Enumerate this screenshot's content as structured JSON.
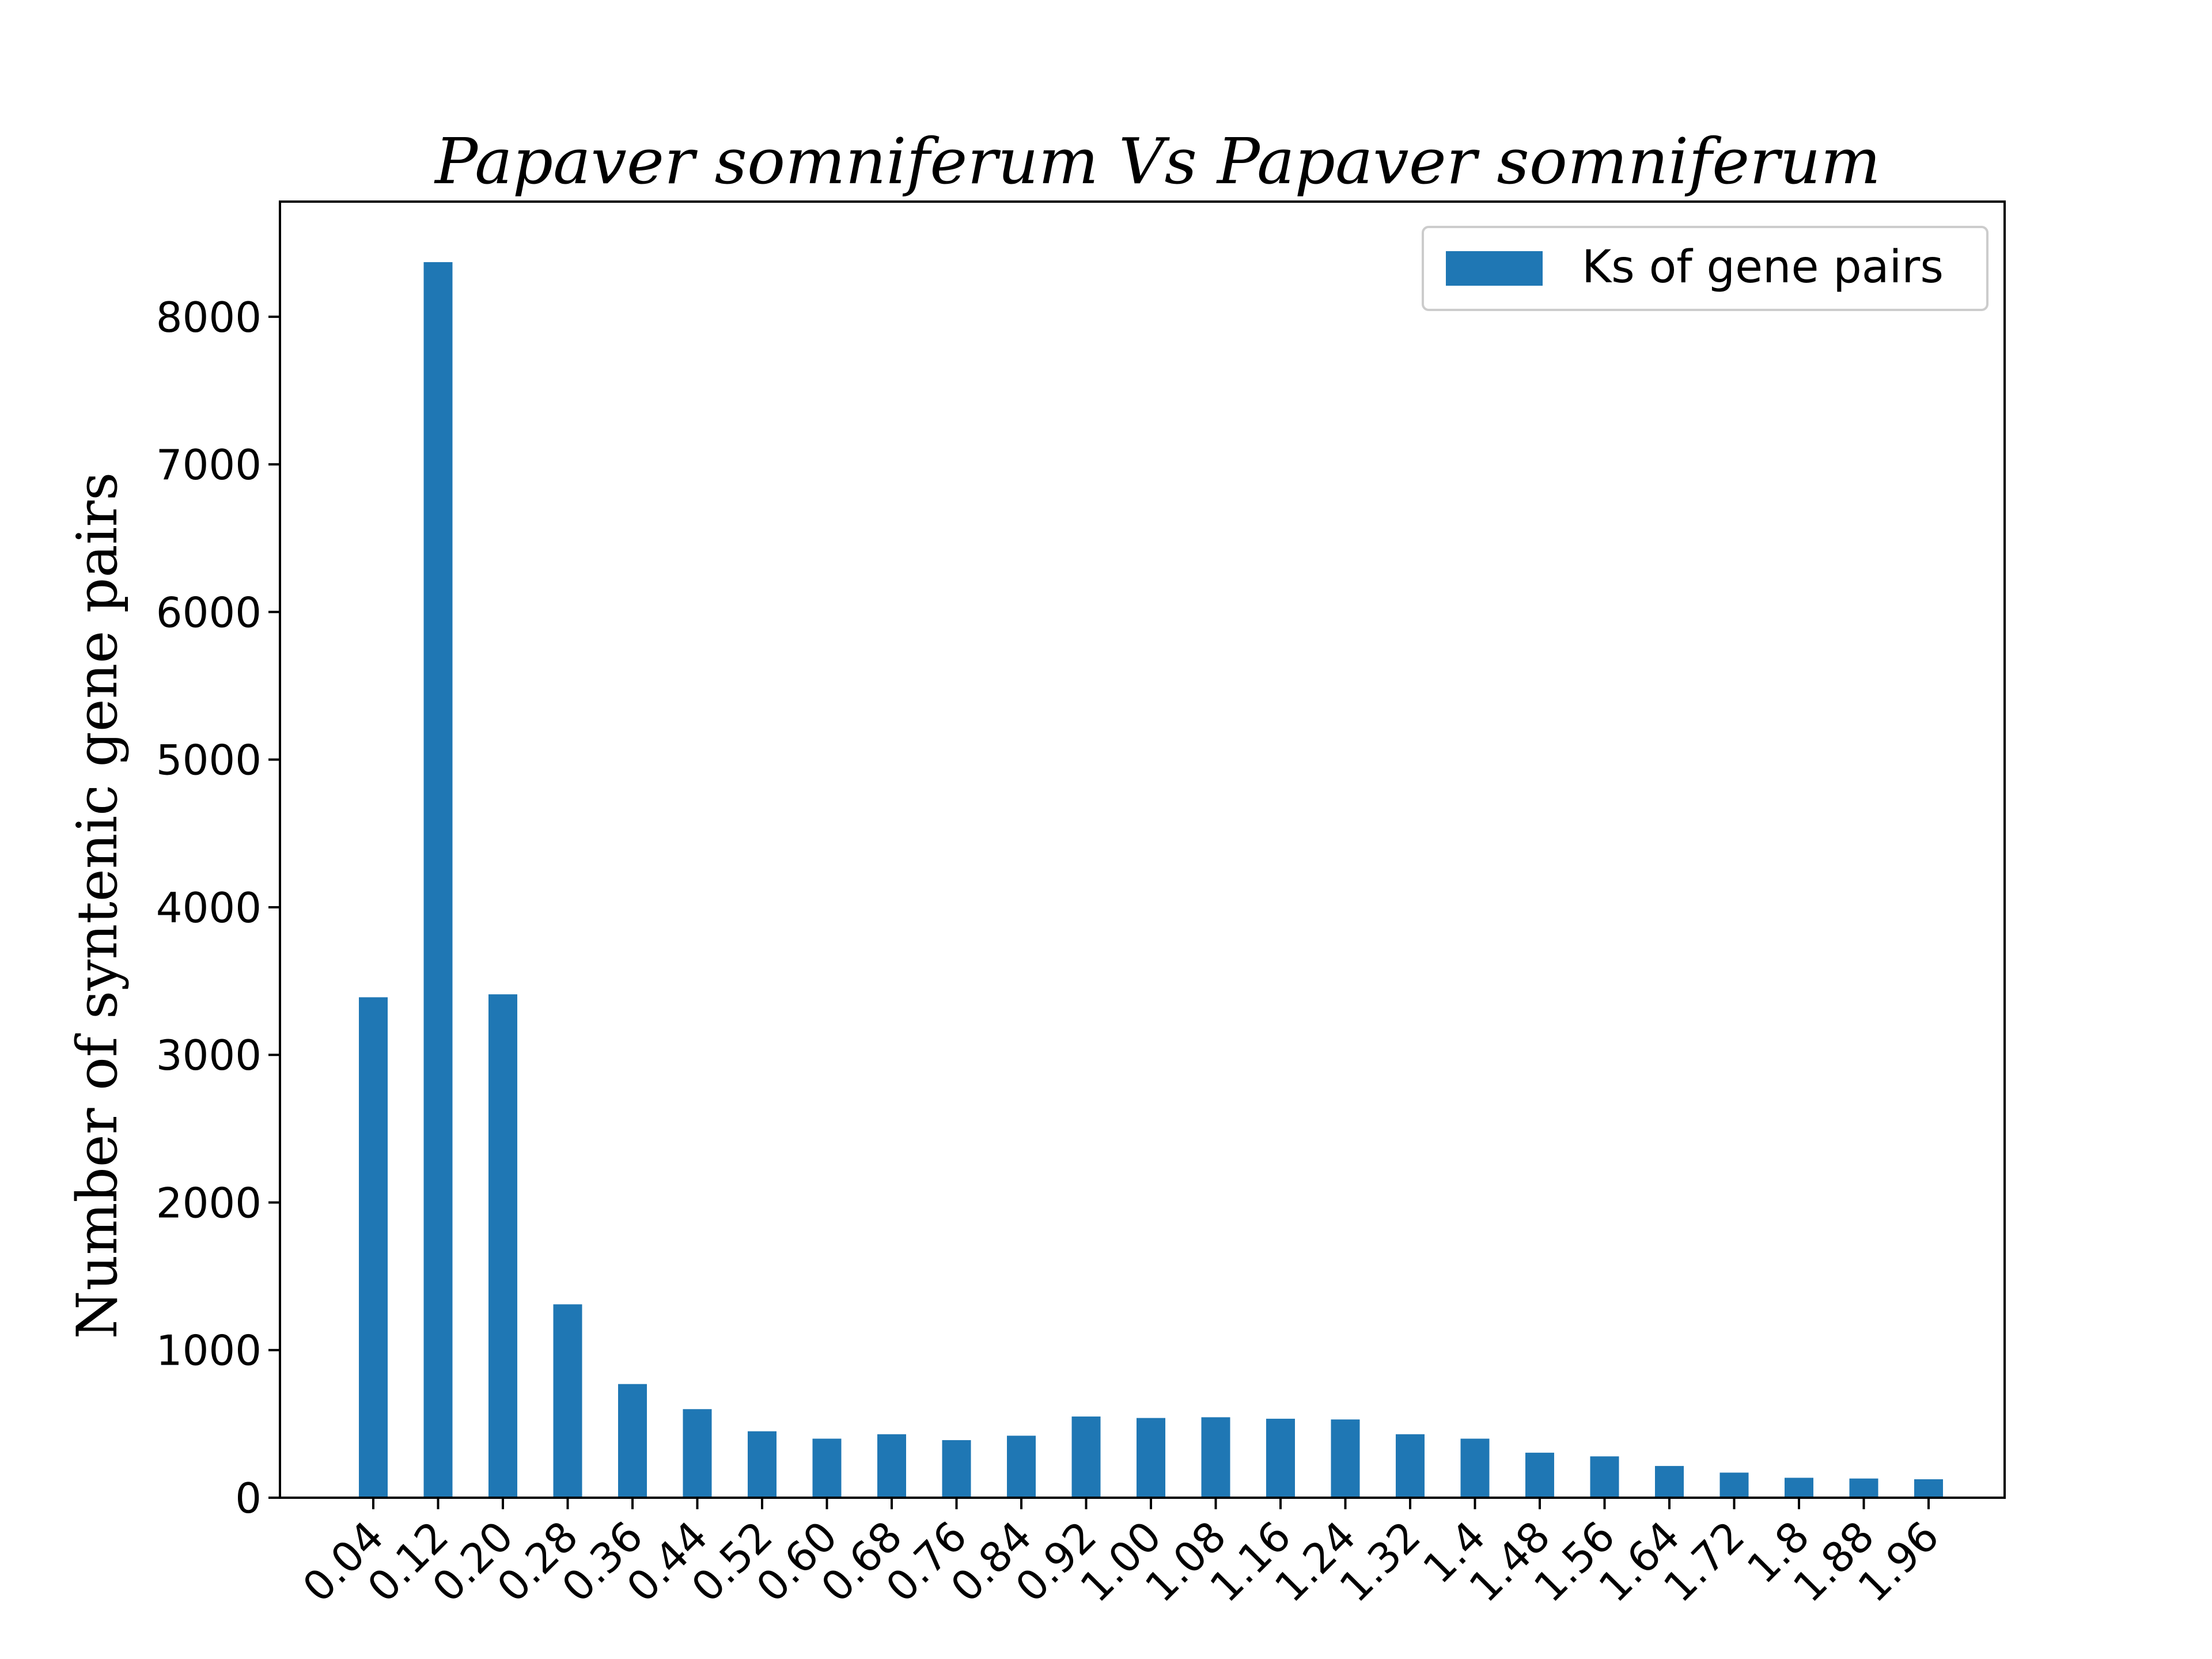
{
  "chart_data": {
    "type": "bar",
    "title": "Papaver somniferum Vs  Papaver somniferum",
    "xlabel": "",
    "ylabel": "Number of syntenic gene pairs",
    "categories": [
      "0.04",
      "0.12",
      "0.20",
      "0.28",
      "0.36",
      "0.44",
      "0.52",
      "0.60",
      "0.68",
      "0.76",
      "0.84",
      "0.92",
      "1.00",
      "1.08",
      "1.16",
      "1.24",
      "1.32",
      "1.4",
      "1.48",
      "1.56",
      "1.64",
      "1.72",
      "1.8",
      "1.88",
      "1.96"
    ],
    "series": [
      {
        "name": "Ks of gene pairs",
        "color": "#1f77b4",
        "values": [
          3390,
          8370,
          3410,
          1310,
          770,
          600,
          450,
          400,
          430,
          390,
          420,
          550,
          540,
          545,
          535,
          530,
          430,
          400,
          305,
          280,
          215,
          170,
          135,
          130,
          125
        ]
      }
    ],
    "yticks": [
      0,
      1000,
      2000,
      3000,
      4000,
      5000,
      6000,
      7000,
      8000
    ],
    "ylim": [
      0,
      8780
    ],
    "grid": false,
    "legend": "top-right"
  }
}
